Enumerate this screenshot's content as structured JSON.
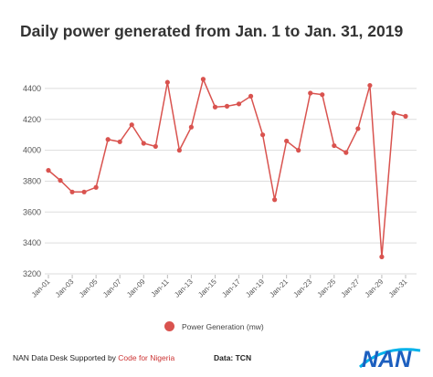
{
  "title": "Daily power generated from Jan. 1 to Jan. 31, 2019",
  "legend_label": "Power Generation (mw)",
  "footer": {
    "prefix": "NAN Data Desk Supported by ",
    "link": "Code for Nigeria",
    "source": "Data: TCN",
    "logo_text": "NAN"
  },
  "colors": {
    "series": "#d9534f",
    "grid": "#dddddd",
    "logo_blue": "#1d5fbf",
    "logo_accent": "#00b2ea"
  },
  "chart_data": {
    "type": "line",
    "title": "Daily power generated from Jan. 1 to Jan. 31, 2019",
    "xlabel": "",
    "ylabel": "",
    "ylim": [
      3200,
      4500
    ],
    "yticks": [
      3200,
      3400,
      3600,
      3800,
      4000,
      4200,
      4400
    ],
    "grid": "horizontal",
    "legend_position": "bottom",
    "x": [
      "Jan-01",
      "Jan-02",
      "Jan-03",
      "Jan-04",
      "Jan-05",
      "Jan-06",
      "Jan-07",
      "Jan-08",
      "Jan-09",
      "Jan-10",
      "Jan-11",
      "Jan-12",
      "Jan-13",
      "Jan-14",
      "Jan-15",
      "Jan-16",
      "Jan-17",
      "Jan-18",
      "Jan-19",
      "Jan-20",
      "Jan-21",
      "Jan-22",
      "Jan-23",
      "Jan-24",
      "Jan-25",
      "Jan-26",
      "Jan-27",
      "Jan-28",
      "Jan-29",
      "Jan-30",
      "Jan-31"
    ],
    "xtick_labels": [
      "Jan-01",
      "Jan-03",
      "Jan-05",
      "Jan-07",
      "Jan-09",
      "Jan-11",
      "Jan-13",
      "Jan-15",
      "Jan-17",
      "Jan-19",
      "Jan-21",
      "Jan-23",
      "Jan-25",
      "Jan-27",
      "Jan-29",
      "Jan-31"
    ],
    "series": [
      {
        "name": "Power Generation (mw)",
        "values": [
          3870,
          3805,
          3730,
          3730,
          3760,
          4070,
          4055,
          4165,
          4045,
          4025,
          4440,
          4000,
          4150,
          4460,
          4280,
          4285,
          4300,
          4350,
          4100,
          3680,
          4060,
          4000,
          4370,
          4360,
          4030,
          3985,
          4140,
          4420,
          3310,
          4240,
          4220
        ]
      }
    ]
  }
}
